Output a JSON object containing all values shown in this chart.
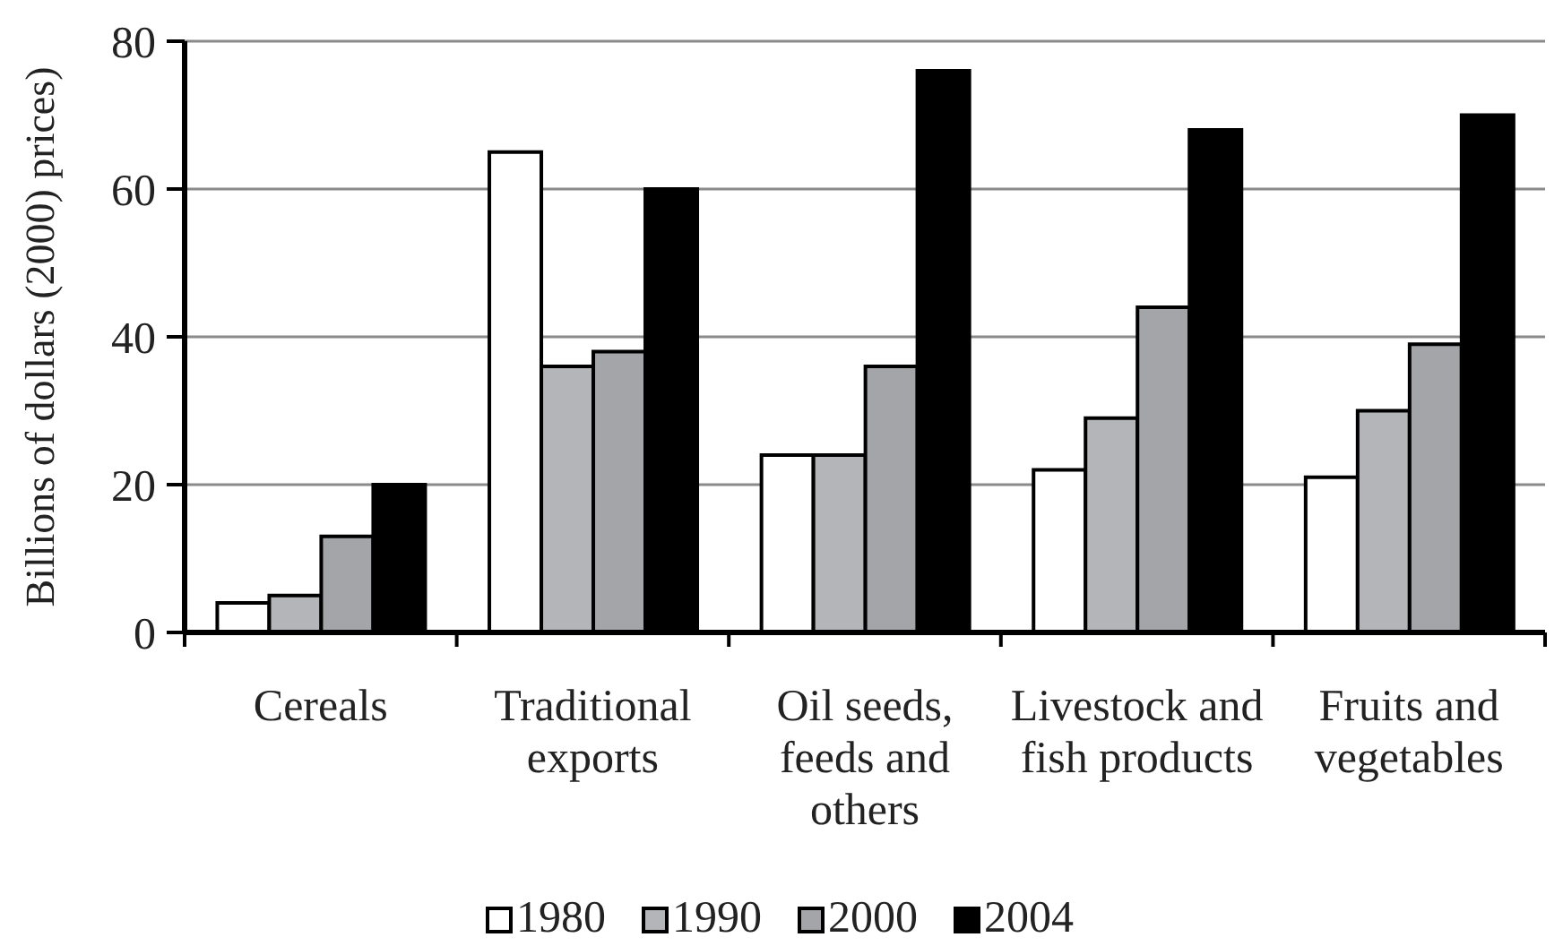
{
  "chart_data": {
    "type": "bar",
    "categories": [
      "Cereals",
      "Traditional exports",
      "Oil seeds, feeds and others",
      "Livestock and fish products",
      "Fruits and vegetables"
    ],
    "ylabel": "Billions of dollars (2000) prices)",
    "series": [
      {
        "name": "1980",
        "color": "#ffffff",
        "values": [
          4,
          65,
          24,
          22,
          21
        ]
      },
      {
        "name": "1990",
        "color": "#b4b5b8",
        "values": [
          5,
          36,
          24,
          29,
          30
        ]
      },
      {
        "name": "2000",
        "color": "#a3a5a8",
        "values": [
          13,
          38,
          36,
          44,
          39
        ]
      },
      {
        "name": "2004",
        "color": "#000000",
        "values": [
          20,
          60,
          76,
          68,
          70
        ]
      }
    ],
    "ylim": [
      0,
      80
    ],
    "yticks": [
      0,
      20,
      40,
      60,
      80
    ],
    "grid": "y",
    "legend": "bottom"
  }
}
